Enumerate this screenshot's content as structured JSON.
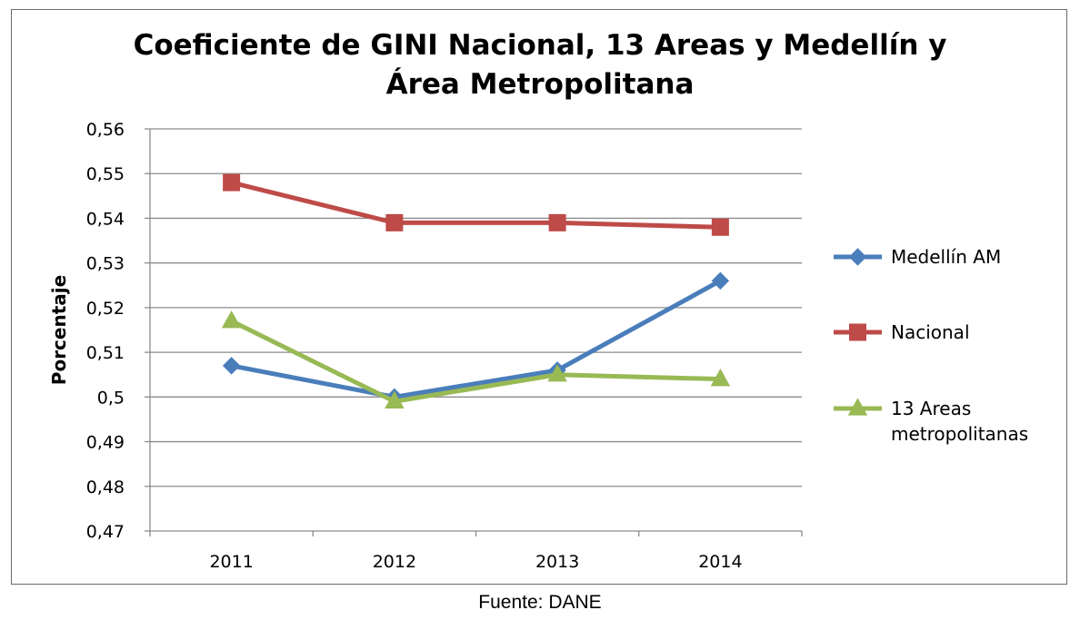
{
  "chart_data": {
    "type": "line",
    "title": "Coeficiente de GINI Nacional, 13 Areas y Medellín y Área Metropolitana",
    "title_lines": [
      "Coeficiente de GINI Nacional, 13 Areas y Medellín y",
      "Área Metropolitana"
    ],
    "xlabel": "",
    "ylabel": "Porcentaje",
    "categories": [
      "2011",
      "2012",
      "2013",
      "2014"
    ],
    "ylim": [
      0.47,
      0.56
    ],
    "yticks": [
      0.47,
      0.48,
      0.49,
      0.5,
      0.51,
      0.52,
      0.53,
      0.54,
      0.55,
      0.56
    ],
    "ytick_labels": [
      "0,47",
      "0,48",
      "0,49",
      "0,5",
      "0,51",
      "0,52",
      "0,53",
      "0,54",
      "0,55",
      "0,56"
    ],
    "grid": true,
    "legend_position": "right",
    "series": [
      {
        "name": "Medellín AM",
        "color": "#4a7ebb",
        "marker": "diamond",
        "values": [
          0.507,
          0.5,
          0.506,
          0.526
        ]
      },
      {
        "name": "Nacional",
        "color": "#be4b48",
        "marker": "square",
        "values": [
          0.548,
          0.539,
          0.539,
          0.538
        ]
      },
      {
        "name": "13 Areas metropolitanas",
        "legend_lines": [
          "13 Areas",
          "metropolitanas"
        ],
        "color": "#98b954",
        "marker": "triangle",
        "values": [
          0.517,
          0.499,
          0.505,
          0.504
        ]
      }
    ]
  },
  "source": "Fuente:  DANE"
}
